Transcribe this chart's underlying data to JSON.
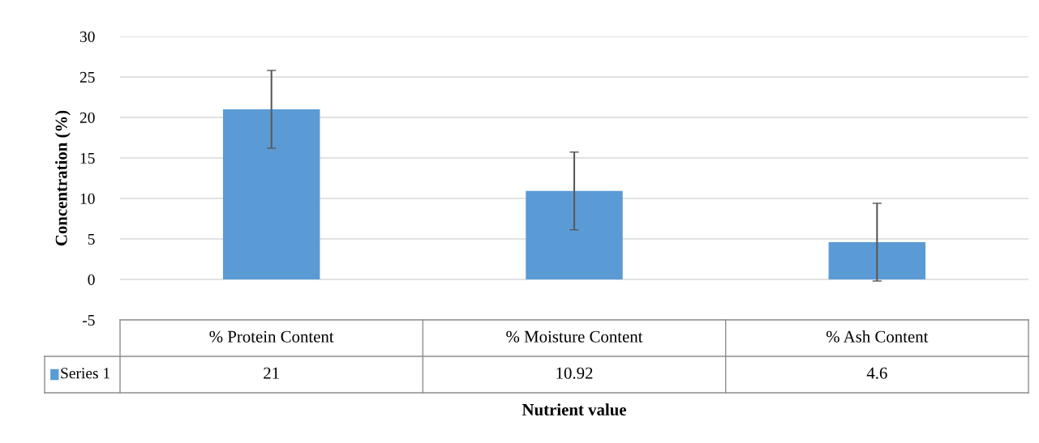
{
  "chart_data": {
    "type": "bar",
    "xlabel": "Nutrient value",
    "ylabel": "Concentration (%)",
    "categories": [
      "% Protein Content",
      "% Moisture Content",
      "% Ash Content"
    ],
    "series": [
      {
        "name": "Series 1",
        "color": "#5b9bd5",
        "values": [
          21,
          10.92,
          4.6
        ],
        "errors": [
          4.8,
          4.8,
          4.8
        ]
      }
    ],
    "ylim": [
      -5,
      30
    ],
    "yticks": [
      -5,
      0,
      5,
      10,
      15,
      20,
      25,
      30
    ],
    "grid": "y",
    "legend": "bottom left",
    "data_labels": true
  }
}
